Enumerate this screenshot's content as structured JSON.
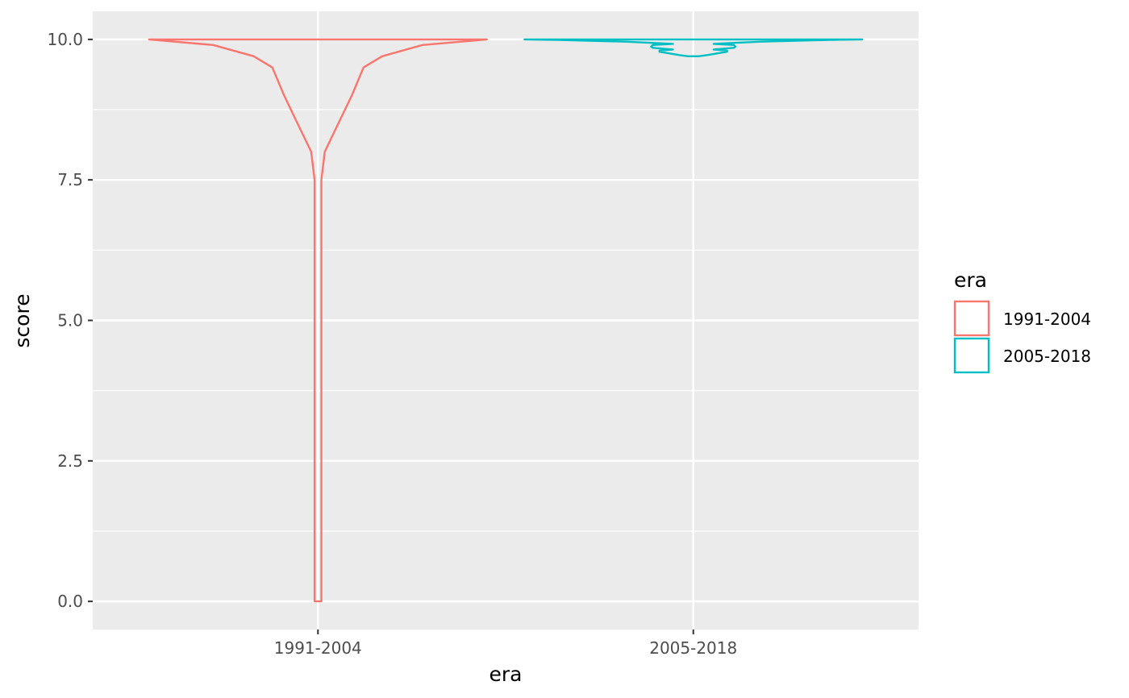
{
  "chart_data": {
    "type": "violin",
    "xlabel": "era",
    "ylabel": "score",
    "categories": [
      "1991-2004",
      "2005-2018"
    ],
    "ylim": [
      -0.5,
      10.5
    ],
    "yticks": [
      0.0,
      2.5,
      5.0,
      7.5,
      10.0
    ],
    "ytick_labels": [
      "0.0",
      "2.5",
      "5.0",
      "7.5",
      "10.0"
    ],
    "grid": true,
    "legend": {
      "title": "era",
      "placement": "right",
      "entries": [
        "1991-2004",
        "2005-2018"
      ]
    },
    "series": [
      {
        "name": "1991-2004",
        "color": "#F8766D",
        "min": 0.0,
        "max": 10.0,
        "density_profile": [
          [
            0.0,
            0.02
          ],
          [
            0.3,
            0.02
          ],
          [
            1.0,
            0.02
          ],
          [
            5.0,
            0.02
          ],
          [
            7.5,
            0.02
          ],
          [
            8.0,
            0.04
          ],
          [
            8.5,
            0.12
          ],
          [
            9.0,
            0.2
          ],
          [
            9.5,
            0.27
          ],
          [
            9.7,
            0.38
          ],
          [
            9.9,
            0.62
          ],
          [
            10.0,
            1.0
          ]
        ]
      },
      {
        "name": "2005-2018",
        "color": "#00BFC4",
        "min": 9.7,
        "max": 10.0,
        "density_profile": [
          [
            9.7,
            0.03
          ],
          [
            9.72,
            0.08
          ],
          [
            9.78,
            0.2
          ],
          [
            9.8,
            0.2
          ],
          [
            9.82,
            0.12
          ],
          [
            9.85,
            0.24
          ],
          [
            9.87,
            0.25
          ],
          [
            9.9,
            0.24
          ],
          [
            9.92,
            0.12
          ],
          [
            9.96,
            0.4
          ],
          [
            9.99,
            0.8
          ],
          [
            10.0,
            1.0
          ]
        ]
      }
    ]
  }
}
